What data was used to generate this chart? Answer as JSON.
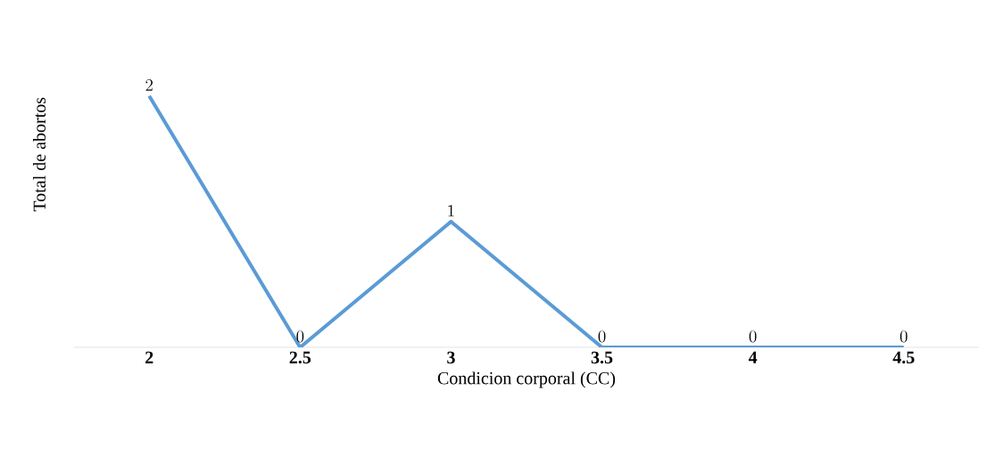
{
  "chart_data": {
    "type": "line",
    "xlabel": "Condicion corporal (CC)",
    "ylabel": "Total de abortos",
    "categories": [
      "2",
      "2.5",
      "3",
      "3.5",
      "4",
      "4.5"
    ],
    "series": [
      {
        "color": "#5b9bd5",
        "values": [
          2,
          0,
          1,
          0,
          0,
          0
        ]
      }
    ],
    "data_labels": true,
    "grid": false,
    "marker": "none",
    "line_style": "solid"
  }
}
